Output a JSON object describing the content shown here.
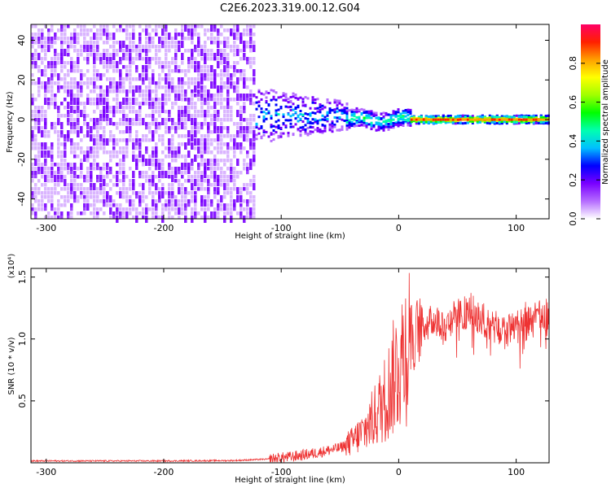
{
  "figure_title": "C2E6.2023.319.00.12.G04",
  "colors": {
    "snr_line": "#ee3333",
    "axes": "#000000"
  },
  "chart_data": [
    {
      "type": "heatmap",
      "xlabel": "Height of straight line (km)",
      "ylabel": "Frequency (Hz)",
      "xlim": [
        -313,
        128
      ],
      "ylim": [
        -50,
        48
      ],
      "x_ticks": [
        -300,
        -200,
        -100,
        0,
        100
      ],
      "y_ticks": [
        -40,
        -20,
        0,
        20,
        40
      ],
      "colorbar": {
        "label": "Normalized spectral amplitude",
        "range": [
          0,
          1
        ],
        "ticks": [
          "0.0",
          "0.2",
          "0.4",
          "0.6",
          "0.8"
        ],
        "colormap": [
          "#ffffff",
          "#b56cff",
          "#7a00ff",
          "#0000ff",
          "#00bfff",
          "#00ffb0",
          "#00ff00",
          "#a0ff00",
          "#ffff00",
          "#ffa000",
          "#ff2000",
          "#ff0066"
        ]
      },
      "regions": [
        {
          "x": [
            -313,
            -122
          ],
          "description_level": 0.1,
          "freq_spread": [
            -50,
            48
          ]
        },
        {
          "x": [
            -122,
            -45
          ],
          "description_level": 0.35,
          "freq_center": 2,
          "freq_spread": [
            -14,
            14
          ]
        },
        {
          "x": [
            -45,
            10
          ],
          "description_level": 0.5,
          "freq_center": 0,
          "freq_spread": [
            -5,
            4
          ]
        },
        {
          "x": [
            10,
            128
          ],
          "description_level": 0.85,
          "freq_center": 0,
          "freq_spread": [
            -2,
            2
          ]
        }
      ]
    },
    {
      "type": "line",
      "xlabel": "Height of straight line (km)",
      "ylabel": "SNR (10 * v/v)",
      "y_multiplier": "(x10⁴)",
      "xlim": [
        -313,
        128
      ],
      "ylim": [
        0,
        1.57
      ],
      "x_ticks": [
        -300,
        -200,
        -100,
        0,
        100
      ],
      "y_ticks": [
        "0.5",
        "1.0",
        "1.5"
      ],
      "y_tick_values": [
        0.5,
        1.0,
        1.5
      ],
      "series": [
        {
          "x": [
            -313,
            -250,
            -200,
            -140,
            -110,
            -90,
            -70,
            -50,
            -40,
            -30,
            -20,
            -10,
            0,
            10,
            20,
            30,
            40,
            50,
            60,
            70,
            80,
            90,
            100,
            110,
            120,
            128
          ],
          "values": [
            0.015,
            0.015,
            0.015,
            0.018,
            0.03,
            0.05,
            0.08,
            0.12,
            0.17,
            0.25,
            0.38,
            0.55,
            0.8,
            1.02,
            1.1,
            1.15,
            1.12,
            1.2,
            1.22,
            1.15,
            1.1,
            1.05,
            1.1,
            1.12,
            1.18,
            1.2
          ]
        }
      ]
    }
  ]
}
